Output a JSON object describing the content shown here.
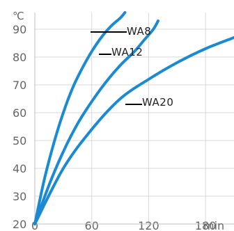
{
  "chart_data": {
    "type": "line",
    "ylabel": "℃",
    "xlabel": "min",
    "x_ticks": [
      "0",
      "60",
      "120",
      "180"
    ],
    "y_ticks": [
      "20",
      "30",
      "40",
      "50",
      "60",
      "70",
      "80",
      "90"
    ],
    "xlim": [
      0,
      210
    ],
    "ylim": [
      20,
      96
    ],
    "grid": true,
    "series": [
      {
        "name": "WA8",
        "x": [
          0,
          10,
          20,
          30,
          40,
          50,
          60,
          70,
          80,
          90,
          95
        ],
        "y": [
          20,
          36,
          49,
          60,
          69,
          76,
          82,
          87,
          91,
          94,
          96
        ]
      },
      {
        "name": "WA12",
        "x": [
          0,
          15,
          30,
          45,
          60,
          75,
          90,
          105,
          115,
          125,
          130
        ],
        "y": [
          20,
          34,
          46,
          56,
          64,
          71,
          77,
          82,
          86,
          90,
          93
        ]
      },
      {
        "name": "WA20",
        "x": [
          0,
          30,
          60,
          90,
          120,
          150,
          180,
          210
        ],
        "y": [
          20,
          40,
          54,
          65,
          72,
          78,
          83,
          87
        ]
      }
    ],
    "line_color": "#1a8ad4",
    "grid_color": "#d9d9d9"
  }
}
